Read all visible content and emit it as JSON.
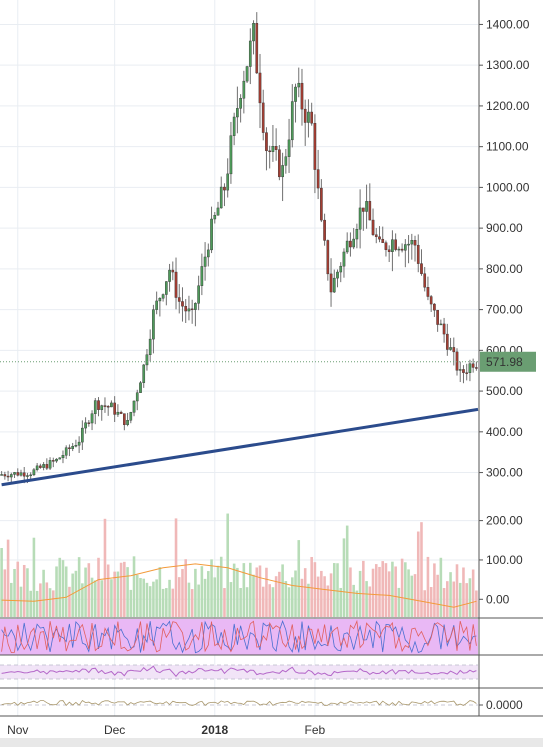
{
  "chart_data": {
    "type": "candlestick",
    "price_axis": {
      "ticks": [
        "1400.00",
        "1300.00",
        "1200.00",
        "1100.00",
        "1000.00",
        "900.00",
        "800.00",
        "700.00",
        "600.00",
        "500.00",
        "400.00",
        "300.00"
      ],
      "tick_values": [
        1400,
        1300,
        1200,
        1100,
        1000,
        900,
        800,
        700,
        600,
        500,
        400,
        300
      ],
      "range": [
        240,
        1460
      ]
    },
    "last_price": {
      "value": 571.98,
      "label": "571.98"
    },
    "volume_axis": {
      "ticks": [
        "200.00",
        "100.00",
        "0.00"
      ],
      "tick_values": [
        200,
        100,
        0
      ],
      "range": [
        -45,
        260
      ]
    },
    "indicator_axis": {
      "ticks": [
        "0.0000"
      ]
    },
    "time_axis": {
      "labels": [
        {
          "text": "Nov",
          "day": 5,
          "bold": false
        },
        {
          "text": "Dec",
          "day": 35,
          "bold": false
        },
        {
          "text": "2018",
          "day": 66,
          "bold": true
        },
        {
          "text": "Feb",
          "day": 97,
          "bold": false
        }
      ]
    },
    "trendline": {
      "from": {
        "day": 0,
        "price": 270
      },
      "to": {
        "day": 148,
        "price": 455
      }
    },
    "anchors": [
      {
        "day": 0,
        "price": 295
      },
      {
        "day": 10,
        "price": 300
      },
      {
        "day": 18,
        "price": 330
      },
      {
        "day": 25,
        "price": 380
      },
      {
        "day": 30,
        "price": 470
      },
      {
        "day": 35,
        "price": 460
      },
      {
        "day": 40,
        "price": 420
      },
      {
        "day": 45,
        "price": 560
      },
      {
        "day": 48,
        "price": 690
      },
      {
        "day": 53,
        "price": 800
      },
      {
        "day": 56,
        "price": 720
      },
      {
        "day": 60,
        "price": 680
      },
      {
        "day": 65,
        "price": 870
      },
      {
        "day": 70,
        "price": 1000
      },
      {
        "day": 75,
        "price": 1250
      },
      {
        "day": 79,
        "price": 1370
      },
      {
        "day": 83,
        "price": 1100
      },
      {
        "day": 88,
        "price": 1040
      },
      {
        "day": 92,
        "price": 1240
      },
      {
        "day": 97,
        "price": 1150
      },
      {
        "day": 100,
        "price": 900
      },
      {
        "day": 103,
        "price": 750
      },
      {
        "day": 108,
        "price": 860
      },
      {
        "day": 113,
        "price": 960
      },
      {
        "day": 118,
        "price": 850
      },
      {
        "day": 122,
        "price": 870
      },
      {
        "day": 129,
        "price": 860
      },
      {
        "day": 133,
        "price": 720
      },
      {
        "day": 138,
        "price": 640
      },
      {
        "day": 143,
        "price": 540
      },
      {
        "day": 147,
        "price": 572
      }
    ],
    "volume_ma": [
      {
        "day": 0,
        "value": -2
      },
      {
        "day": 10,
        "value": -5
      },
      {
        "day": 20,
        "value": 5
      },
      {
        "day": 30,
        "value": 50
      },
      {
        "day": 40,
        "value": 60
      },
      {
        "day": 50,
        "value": 80
      },
      {
        "day": 60,
        "value": 90
      },
      {
        "day": 70,
        "value": 80
      },
      {
        "day": 80,
        "value": 55
      },
      {
        "day": 90,
        "value": 35
      },
      {
        "day": 100,
        "value": 25
      },
      {
        "day": 110,
        "value": 15
      },
      {
        "day": 120,
        "value": 10
      },
      {
        "day": 130,
        "value": -5
      },
      {
        "day": 140,
        "value": -20
      },
      {
        "day": 147,
        "value": -5
      }
    ],
    "days": 148,
    "colors": {
      "up_body": "#4e9a5a",
      "down_body": "#a33d32",
      "wick": "#707070",
      "vol_up": "#b7dcb7",
      "vol_down": "#f0b8b8",
      "trendline": "#2b4b8c",
      "volume_ma": "#f39a3a",
      "price_label_bg": "#6a9e72",
      "indicator1_bg": "#e9b8f5",
      "indicator2_line": "#b467c9",
      "indicator3_line": "#a8966a",
      "grid": "#e9edf2"
    }
  }
}
